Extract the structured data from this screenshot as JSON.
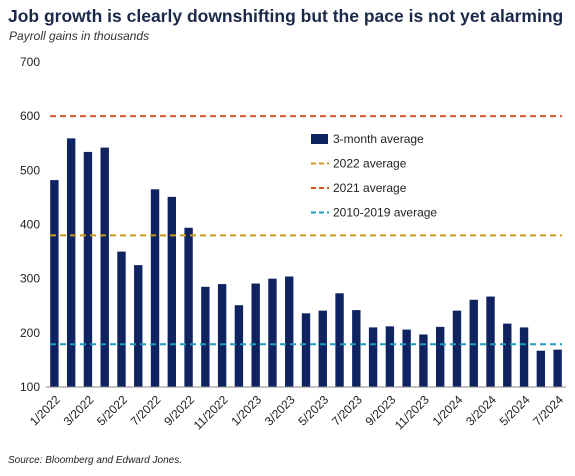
{
  "title": "Job growth is clearly downshifting but the pace is not yet alarming",
  "subtitle": "Payroll gains in thousands",
  "source": "Source: Bloomberg and Edward Jones.",
  "colors": {
    "bar": "#0f2360",
    "avg_2022": "#c89b1a",
    "avg_2021": "#d8582a",
    "avg_2010_2019": "#1e9bbf"
  },
  "chart_data": {
    "type": "bar",
    "ylim": [
      100,
      700
    ],
    "yticks": [
      100,
      200,
      300,
      400,
      500,
      600,
      700
    ],
    "grid": false,
    "legend_position": "center-right",
    "categories": [
      "1/2022",
      "2/2022",
      "3/2022",
      "4/2022",
      "5/2022",
      "6/2022",
      "7/2022",
      "8/2022",
      "9/2022",
      "10/2022",
      "11/2022",
      "12/2022",
      "1/2023",
      "2/2023",
      "3/2023",
      "4/2023",
      "5/2023",
      "6/2023",
      "7/2023",
      "8/2023",
      "9/2023",
      "10/2023",
      "11/2023",
      "12/2023",
      "1/2024",
      "2/2024",
      "3/2024",
      "4/2024",
      "5/2024",
      "6/2024",
      "7/2024"
    ],
    "xtick_labels": [
      "1/2022",
      "3/2022",
      "5/2022",
      "7/2022",
      "9/2022",
      "11/2022",
      "1/2023",
      "3/2023",
      "5/2023",
      "7/2023",
      "9/2023",
      "11/2023",
      "1/2024",
      "3/2024",
      "5/2024",
      "7/2024"
    ],
    "series": [
      {
        "name": "3-month average",
        "values": [
          482,
          559,
          534,
          542,
          350,
          325,
          465,
          451,
          394,
          285,
          290,
          251,
          291,
          300,
          304,
          236,
          241,
          273,
          242,
          210,
          212,
          206,
          197,
          211,
          241,
          261,
          267,
          217,
          210,
          167,
          169
        ]
      }
    ],
    "reference_lines": [
      {
        "name": "2022 average",
        "value": 380,
        "style": "dashed"
      },
      {
        "name": "2021 average",
        "value": 600,
        "style": "dashed"
      },
      {
        "name": "2010-2019 average",
        "value": 179,
        "style": "dashed"
      }
    ]
  }
}
